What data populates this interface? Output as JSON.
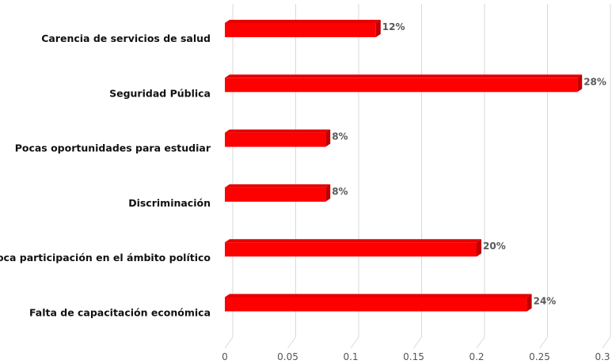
{
  "chart_data": {
    "type": "bar",
    "orientation": "horizontal",
    "categories": [
      "Carencia de servicios de salud",
      "Seguridad Pública",
      "Pocas oportunidades para estudiar",
      "Discriminación",
      "Poca participación en el ámbito político",
      "Falta de capacitación económica"
    ],
    "values": [
      0.12,
      0.28,
      0.08,
      0.08,
      0.2,
      0.24
    ],
    "data_labels": [
      "12%",
      "28%",
      "8%",
      "8%",
      "20%",
      "24%"
    ],
    "x_ticks": [
      "0",
      "0.05",
      "0.1",
      "0.15",
      "0.2",
      "0.25",
      "0.3"
    ],
    "xlim": [
      0,
      0.3
    ],
    "grid": true,
    "bar_color": "#ff0000",
    "bar_side_color": "#c00000",
    "bar_top_color": "#e60000"
  }
}
